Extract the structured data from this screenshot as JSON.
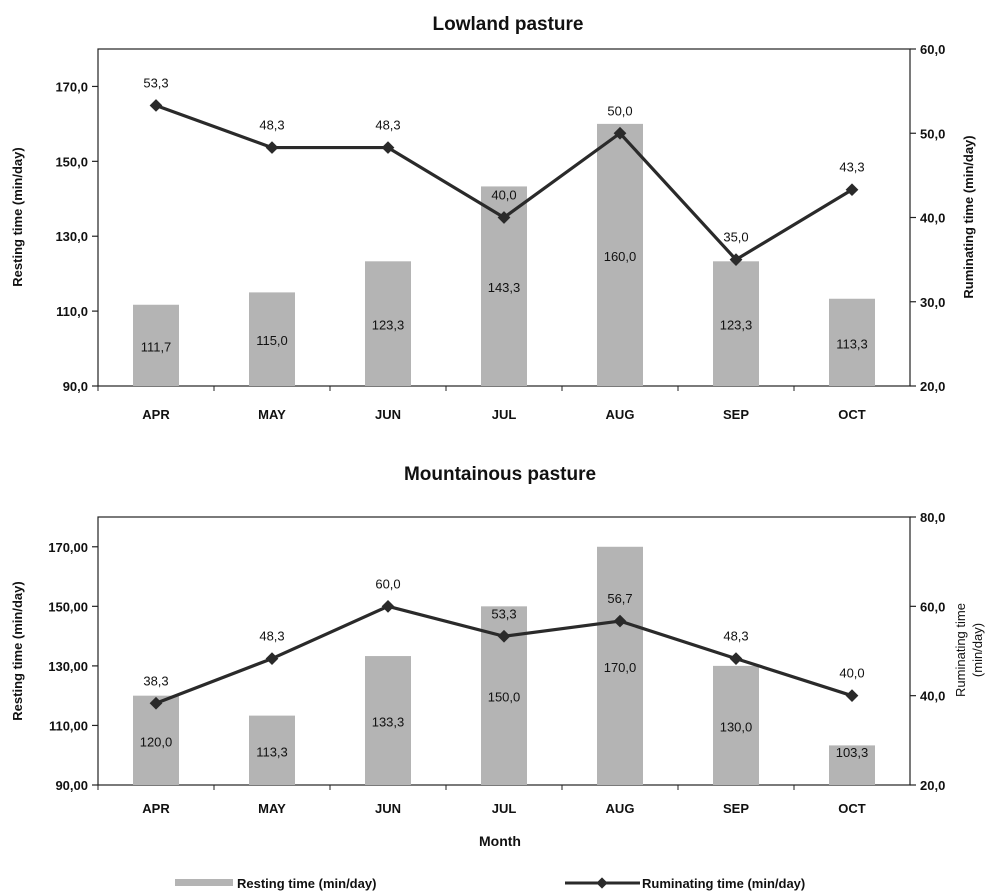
{
  "chart_data": [
    {
      "type": "bar",
      "title": "Lowland pasture",
      "xlabel": "",
      "categories": [
        "APR",
        "MAY",
        "JUN",
        "JUL",
        "AUG",
        "SEP",
        "OCT"
      ],
      "series": [
        {
          "name": "Resting time (min/day)",
          "kind": "bar",
          "axis": "left",
          "values": [
            111.7,
            115.0,
            123.3,
            143.3,
            160.0,
            123.3,
            113.3
          ],
          "labels": [
            "111,7",
            "115,0",
            "123,3",
            "143,3",
            "160,0",
            "123,3",
            "113,3"
          ]
        },
        {
          "name": "Ruminating time (min/day)",
          "kind": "line",
          "axis": "right",
          "values": [
            53.3,
            48.3,
            48.3,
            40.0,
            50.0,
            35.0,
            43.3
          ],
          "labels": [
            "53,3",
            "48,3",
            "48,3",
            "40,0",
            "50,0",
            "35,0",
            "43,3"
          ]
        }
      ],
      "ylabel": "Resting time (min/day)",
      "ylim": [
        90,
        180
      ],
      "yticks": [
        90,
        110,
        130,
        150,
        170
      ],
      "ytick_labels": [
        "90,0",
        "110,0",
        "130,0",
        "150,0",
        "170,0"
      ],
      "y2label": "Ruminating time (min/day)",
      "y2lim": [
        20,
        60
      ],
      "y2ticks": [
        20,
        30,
        40,
        50,
        60
      ],
      "y2tick_labels": [
        "20,0",
        "30,0",
        "40,0",
        "50,0",
        "60,0"
      ],
      "grid": false
    },
    {
      "type": "bar",
      "title": "Mountainous pasture",
      "xlabel": "Month",
      "categories": [
        "APR",
        "MAY",
        "JUN",
        "JUL",
        "AUG",
        "SEP",
        "OCT"
      ],
      "series": [
        {
          "name": "Resting time (min/day)",
          "kind": "bar",
          "axis": "left",
          "values": [
            120.0,
            113.3,
            133.3,
            150.0,
            170.0,
            130.0,
            103.3
          ],
          "labels": [
            "120,0",
            "113,3",
            "133,3",
            "150,0",
            "170,0",
            "130,0",
            "103,3"
          ]
        },
        {
          "name": "Ruminating time (min/day)",
          "kind": "line",
          "axis": "right",
          "values": [
            38.3,
            48.3,
            60.0,
            53.3,
            56.7,
            48.3,
            40.0
          ],
          "labels": [
            "38,3",
            "48,3",
            "60,0",
            "53,3",
            "56,7",
            "48,3",
            "40,0"
          ]
        }
      ],
      "ylabel": "Resting time (min/day)",
      "ylim": [
        90,
        180
      ],
      "yticks": [
        90,
        110,
        130,
        150,
        170
      ],
      "ytick_labels": [
        "90,00",
        "110,00",
        "130,00",
        "150,00",
        "170,00"
      ],
      "y2label": "Ruminating time (min/day)",
      "y2label_lines": [
        "Ruminating time",
        "(min/day)"
      ],
      "y2lim": [
        20,
        80
      ],
      "y2ticks": [
        20,
        40,
        60,
        80
      ],
      "y2tick_labels": [
        "20,0",
        "40,0",
        "60,0",
        "80,0"
      ],
      "grid": false
    }
  ],
  "legend": {
    "placement": "bottom",
    "items": [
      {
        "label": "Resting time (min/day)",
        "symbol": "bar"
      },
      {
        "label": "Ruminating time (min/day)",
        "symbol": "line-marker"
      }
    ]
  },
  "colors": {
    "bar": "#b4b4b4",
    "bar_label": "#3c3c3c",
    "line": "#2a2a2a",
    "axis": "#222222"
  }
}
